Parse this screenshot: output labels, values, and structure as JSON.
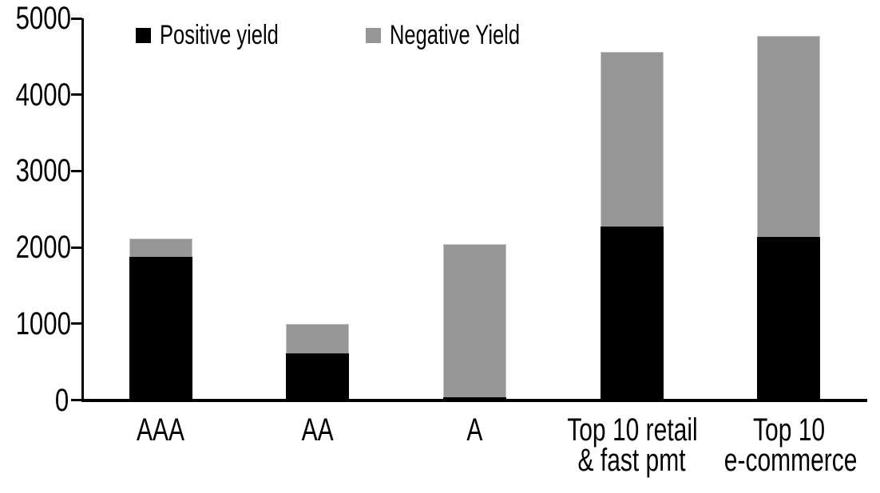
{
  "chart_data": {
    "type": "bar",
    "stacked": true,
    "title": "",
    "xlabel": "",
    "ylabel": "",
    "categories": [
      "AAA",
      "AA",
      "A",
      "Top 10 retail & fast pmt",
      "Top 10 e-commerce"
    ],
    "category_label_lines": [
      [
        "AAA"
      ],
      [
        "AA"
      ],
      [
        "A"
      ],
      [
        "Top 10 retail",
        "& fast pmt"
      ],
      [
        "Top 10",
        "e-commerce"
      ]
    ],
    "series": [
      {
        "name": "Positive yield",
        "color": "#000000",
        "values": [
          1880,
          615,
          40,
          2270,
          2140
        ]
      },
      {
        "name": "Negative Yield",
        "color": "#969696",
        "values": [
          240,
          385,
          2000,
          2290,
          2630
        ]
      }
    ],
    "stack_totals": [
      2120,
      1000,
      2040,
      4560,
      4770
    ],
    "ylim": [
      0,
      5000
    ],
    "yticks": [
      0,
      1000,
      2000,
      3000,
      4000,
      5000
    ],
    "grid": false,
    "legend_position": "top"
  },
  "colors": {
    "positive": "#000000",
    "negative": "#969696",
    "axis": "#000000",
    "background": "#ffffff"
  }
}
